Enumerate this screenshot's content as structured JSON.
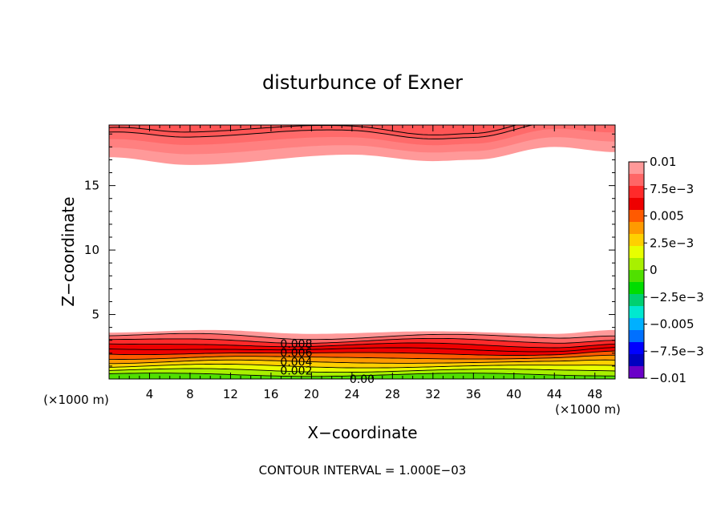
{
  "chart_data": {
    "type": "contour",
    "title": "disturbunce of Exner",
    "xlabel": "X−coordinate",
    "ylabel": "Z−coordinate",
    "x_unit_left": "(×1000 m)",
    "x_unit_right": "(×1000 m)",
    "footer": "CONTOUR INTERVAL = 1.000E−03",
    "xlim": [
      0,
      50
    ],
    "ylim": [
      0,
      19.7
    ],
    "x_ticks": [
      4,
      8,
      12,
      16,
      20,
      24,
      28,
      32,
      36,
      40,
      44,
      48
    ],
    "y_ticks": [
      5,
      10,
      15
    ],
    "contour_labels": [
      {
        "text": "0.008",
        "x": 18.5,
        "z": 2.8
      },
      {
        "text": "0.006",
        "x": 18.5,
        "z": 2.1
      },
      {
        "text": "0.004",
        "x": 18.5,
        "z": 1.4
      },
      {
        "text": "0.002",
        "x": 18.5,
        "z": 0.7
      },
      {
        "text": "0.00",
        "x": 25,
        "z": 0.05
      }
    ],
    "top_band": {
      "z_low": 17.3,
      "z_high": 19.7,
      "lower_edge_profile": [
        [
          0,
          17.2
        ],
        [
          8,
          16.6
        ],
        [
          24,
          17.4
        ],
        [
          32,
          16.9
        ],
        [
          36,
          17.0
        ],
        [
          44,
          18.0
        ],
        [
          50,
          17.6
        ]
      ],
      "values": [
        0.009,
        0.01
      ]
    },
    "bottom_band": {
      "z_low": 0,
      "z_top": 3.6,
      "top_edge_profile": [
        [
          0,
          3.6
        ],
        [
          10,
          3.8
        ],
        [
          20,
          3.5
        ],
        [
          32,
          3.7
        ],
        [
          44,
          3.5
        ],
        [
          50,
          3.8
        ]
      ],
      "levels": [
        0.01,
        0.009,
        0.008,
        0.007,
        0.006,
        0.005,
        0.004,
        0.003,
        0.002,
        0.001,
        0.0
      ]
    },
    "colorbar": {
      "labels": [
        "0.01",
        "7.5e−3",
        "0.005",
        "2.5e−3",
        "0",
        "−2.5e−3",
        "−0.005",
        "−7.5e−3",
        "−0.01"
      ],
      "colors": [
        "#ff9999",
        "#ff6666",
        "#ff2a2a",
        "#ee0000",
        "#ff5a00",
        "#ff9a00",
        "#ffd000",
        "#e8ff00",
        "#a8f000",
        "#50e000",
        "#00dd00",
        "#00d070",
        "#00e8d0",
        "#00b0ff",
        "#0070ff",
        "#0000ff",
        "#0000c0",
        "#6a00c8"
      ]
    }
  }
}
